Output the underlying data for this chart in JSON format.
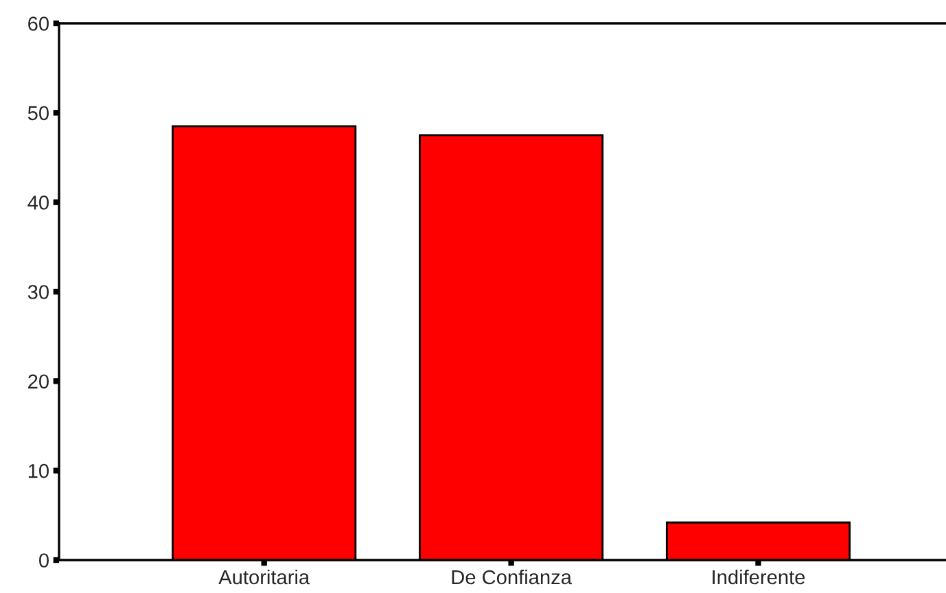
{
  "chart_data": {
    "type": "bar",
    "categories": [
      "Autoritaria",
      "De Confianza",
      "Indiferente"
    ],
    "values": [
      48.5,
      47.5,
      4.2
    ],
    "color": "#ff0000",
    "ylim": [
      0,
      60
    ],
    "yticks": [
      0,
      10,
      20,
      30,
      40,
      50,
      60
    ],
    "grid": false
  }
}
